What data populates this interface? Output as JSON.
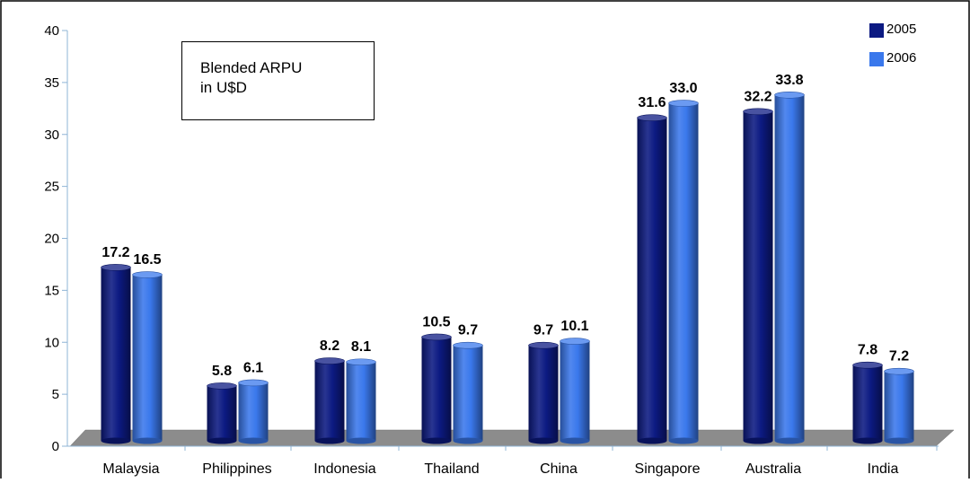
{
  "chart_data": {
    "type": "bar",
    "title": "",
    "xlabel": "",
    "ylabel": "",
    "ylim": [
      0,
      40
    ],
    "yticks": [
      0,
      5,
      10,
      15,
      20,
      25,
      30,
      35,
      40
    ],
    "categories": [
      "Malaysia",
      "Philippines",
      "Indonesia",
      "Thailand",
      "China",
      "Singapore",
      "Australia",
      "India"
    ],
    "series": [
      {
        "name": "2005",
        "color": "#0c1a82",
        "values": [
          17.2,
          5.8,
          8.2,
          10.5,
          9.7,
          31.6,
          32.2,
          7.8
        ]
      },
      {
        "name": "2006",
        "color": "#3a78ec",
        "values": [
          16.5,
          6.1,
          8.1,
          9.7,
          10.1,
          33.0,
          33.8,
          7.2
        ]
      }
    ],
    "data_labels": [
      [
        "17.2",
        "5.8",
        "8.2",
        "10.5",
        "9.7",
        "31.6",
        "32.2",
        "7.8"
      ],
      [
        "16.5",
        "6.1",
        "8.1",
        "9.7",
        "10.1",
        "33.0",
        "33.8",
        "7.2"
      ]
    ],
    "annotation": [
      "Blended ARPU",
      "in U$D"
    ],
    "legend_position": "top-right",
    "grid": false,
    "style": "3d-cylinder",
    "floor_color": "#8c8c8c"
  }
}
